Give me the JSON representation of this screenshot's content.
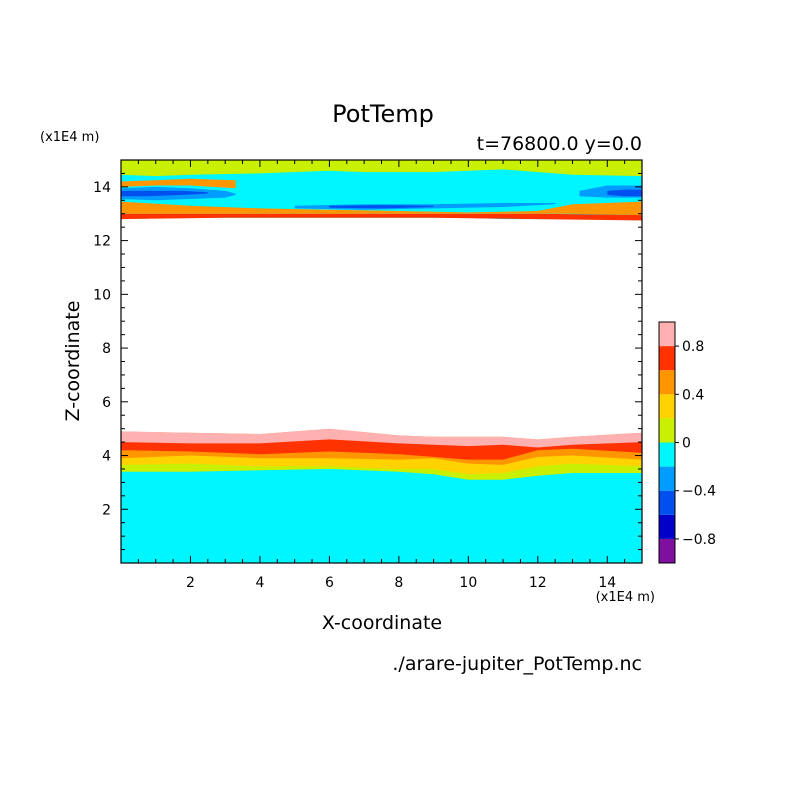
{
  "chart_data": {
    "type": "heatmap",
    "title": "PotTemp",
    "subtitle": "t=76800.0 y=0.0",
    "xlabel": "X-coordinate",
    "ylabel": "Z-coordinate",
    "x_unit": "(x1E4 m)",
    "y_unit": "(x1E4 m)",
    "source_file": "./arare-jupiter_PotTemp.nc",
    "xlim": [
      0,
      15
    ],
    "ylim": [
      0,
      15
    ],
    "x_ticks": [
      2,
      4,
      6,
      8,
      10,
      12,
      14
    ],
    "y_ticks": [
      2,
      4,
      6,
      8,
      10,
      12,
      14
    ],
    "colorbar": {
      "levels": [
        -1.0,
        -0.8,
        -0.6,
        -0.4,
        -0.2,
        0.0,
        0.2,
        0.4,
        0.6,
        0.8,
        1.0
      ],
      "colors": [
        "#7f0f9f",
        "#0000c8",
        "#0050f0",
        "#009cff",
        "#00f6ff",
        "#c8f000",
        "#ffd200",
        "#ff9600",
        "#ff3200",
        "#ffb0b0"
      ],
      "tick_labels": [
        {
          "value": -0.8,
          "label": "−0.8"
        },
        {
          "value": -0.4,
          "label": "−0.4"
        },
        {
          "value": 0.0,
          "label": "0"
        },
        {
          "value": 0.4,
          "label": "0.4"
        },
        {
          "value": 0.8,
          "label": "0.8"
        }
      ]
    },
    "bands": [
      {
        "level": 0.1,
        "color": "#00f6ff",
        "x": [
          0,
          15
        ],
        "bottom": [
          0,
          0
        ],
        "top": [
          15,
          15
        ]
      },
      {
        "level": 0.3,
        "color": "#c8f000",
        "x": [
          0,
          2,
          4,
          6,
          8,
          9,
          10,
          11,
          12,
          13,
          15
        ],
        "bottom": [
          3.4,
          3.4,
          3.45,
          3.5,
          3.4,
          3.3,
          3.1,
          3.1,
          3.25,
          3.35,
          3.35
        ],
        "top": [
          4.9,
          4.85,
          4.8,
          5.0,
          4.75,
          4.7,
          4.7,
          4.7,
          4.6,
          4.7,
          4.85
        ]
      },
      {
        "level": 0.5,
        "color": "#ffd200",
        "x": [
          0,
          2,
          4,
          6,
          8,
          9,
          10,
          11,
          12,
          13,
          15
        ],
        "bottom": [
          3.65,
          3.7,
          3.6,
          3.6,
          3.5,
          3.5,
          3.3,
          3.35,
          3.6,
          3.7,
          3.6
        ],
        "top": [
          4.9,
          4.85,
          4.8,
          5.0,
          4.75,
          4.7,
          4.7,
          4.7,
          4.6,
          4.7,
          4.85
        ]
      },
      {
        "level": 0.7,
        "color": "#ff9600",
        "x": [
          0,
          2,
          4,
          6,
          8,
          9,
          10,
          11,
          12,
          13,
          15
        ],
        "bottom": [
          3.9,
          4.0,
          3.9,
          3.9,
          3.85,
          3.9,
          3.7,
          3.65,
          3.95,
          4.0,
          3.85
        ],
        "top": [
          4.9,
          4.85,
          4.8,
          5.0,
          4.75,
          4.7,
          4.7,
          4.7,
          4.6,
          4.7,
          4.85
        ]
      },
      {
        "level": 0.9,
        "color": "#ff3200",
        "x": [
          0,
          2,
          4,
          6,
          8,
          9,
          10,
          11,
          12,
          13,
          15
        ],
        "bottom": [
          4.2,
          4.15,
          4.05,
          4.15,
          4.05,
          3.95,
          3.85,
          3.85,
          4.2,
          4.25,
          4.1
        ],
        "top": [
          4.9,
          4.85,
          4.8,
          5.0,
          4.75,
          4.7,
          4.7,
          4.7,
          4.6,
          4.7,
          4.85
        ]
      },
      {
        "level": 1.0,
        "color": "#ffb0b0",
        "x": [
          0,
          2,
          4,
          6,
          8,
          9,
          10,
          11,
          12,
          13,
          15
        ],
        "bottom": [
          4.5,
          4.45,
          4.45,
          4.6,
          4.45,
          4.4,
          4.35,
          4.4,
          4.3,
          4.4,
          4.5
        ],
        "top": [
          4.9,
          4.85,
          4.8,
          5.0,
          4.75,
          4.7,
          4.7,
          4.7,
          4.6,
          4.7,
          4.85
        ]
      },
      {
        "level": 1.2,
        "color": "#ffffff",
        "x": [
          0,
          2,
          4,
          6,
          8,
          9,
          10,
          11,
          12,
          13,
          15
        ],
        "bottom": [
          4.9,
          4.85,
          4.8,
          5.0,
          4.75,
          4.7,
          4.7,
          4.7,
          4.6,
          4.7,
          4.85
        ],
        "top": [
          12.8,
          12.85,
          12.85,
          12.85,
          12.85,
          12.85,
          12.85,
          12.8,
          12.8,
          12.8,
          12.75
        ]
      },
      {
        "level": 0.9,
        "color": "#ff3200",
        "x": [
          0,
          3,
          6,
          9,
          12,
          15
        ],
        "bottom": [
          12.8,
          12.85,
          12.85,
          12.85,
          12.8,
          12.75
        ],
        "top": [
          13.0,
          13.0,
          13.0,
          13.0,
          13.0,
          12.95
        ]
      },
      {
        "level": 0.7,
        "color": "#ff9600",
        "x": [
          0,
          2,
          4,
          6,
          8,
          10,
          12,
          13,
          15
        ],
        "bottom": [
          13.0,
          13.0,
          13.0,
          13.0,
          13.0,
          13.0,
          13.0,
          13.0,
          12.95
        ],
        "top": [
          13.45,
          13.3,
          13.2,
          13.15,
          13.1,
          13.05,
          13.1,
          13.35,
          13.45
        ]
      },
      {
        "level": 0.3,
        "color": "#c8f000",
        "x": [
          0,
          1,
          2,
          4,
          6,
          7,
          9,
          11,
          13,
          15
        ],
        "bottom": [
          14.45,
          14.4,
          14.45,
          14.5,
          14.6,
          14.55,
          14.55,
          14.65,
          14.45,
          14.4
        ],
        "top": [
          15,
          15,
          15,
          15,
          15,
          15,
          15,
          15,
          15,
          15
        ]
      },
      {
        "level": -0.3,
        "color": "#009cff",
        "x": [
          0,
          1,
          2,
          3,
          3.3
        ],
        "bottom": [
          13.55,
          13.5,
          13.55,
          13.6,
          13.7
        ],
        "top": [
          13.95,
          14.0,
          13.95,
          13.85,
          13.75
        ]
      },
      {
        "level": -0.5,
        "color": "#0050f0",
        "x": [
          0,
          0.8,
          1.8,
          2.5
        ],
        "bottom": [
          13.65,
          13.65,
          13.7,
          13.75
        ],
        "top": [
          13.85,
          13.85,
          13.85,
          13.8
        ]
      },
      {
        "level": -0.3,
        "color": "#009cff",
        "x": [
          5,
          7,
          9,
          11,
          12.5
        ],
        "bottom": [
          13.2,
          13.15,
          13.2,
          13.25,
          13.35
        ],
        "top": [
          13.3,
          13.35,
          13.35,
          13.4,
          13.4
        ]
      },
      {
        "level": -0.5,
        "color": "#0050f0",
        "x": [
          6,
          7.5,
          9
        ],
        "bottom": [
          13.22,
          13.2,
          13.25
        ],
        "top": [
          13.3,
          13.32,
          13.3
        ]
      },
      {
        "level": -0.3,
        "color": "#009cff",
        "x": [
          13.2,
          14,
          15
        ],
        "bottom": [
          13.65,
          13.6,
          13.6
        ],
        "top": [
          13.85,
          14.05,
          14.05
        ]
      },
      {
        "level": -0.5,
        "color": "#0050f0",
        "x": [
          14,
          14.5,
          15
        ],
        "bottom": [
          13.7,
          13.65,
          13.65
        ],
        "top": [
          13.85,
          13.9,
          13.9
        ]
      },
      {
        "level": 0.7,
        "color": "#ff9600",
        "x": [
          0,
          1,
          2,
          3.3
        ],
        "bottom": [
          14.0,
          14.05,
          14.05,
          13.95
        ],
        "top": [
          14.2,
          14.25,
          14.3,
          14.25
        ]
      }
    ]
  }
}
